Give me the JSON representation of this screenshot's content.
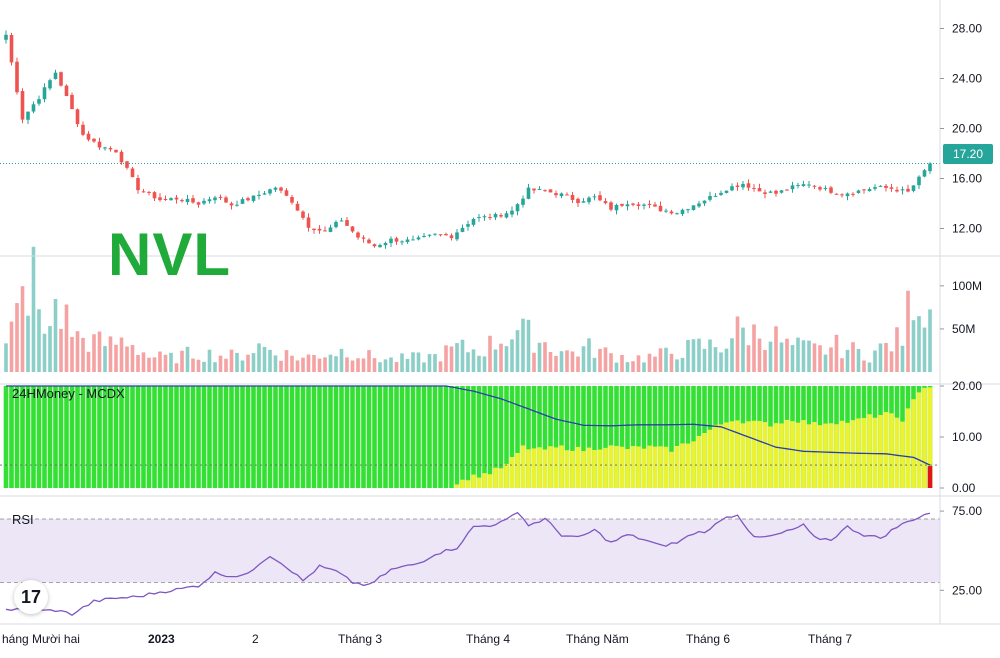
{
  "ticker": "NVL",
  "indicator_label": "24HMoney - MCDX",
  "rsi_label": "RSI",
  "logo_text": "17",
  "last_price_badge": "17.20",
  "colors": {
    "up": "#26a69a",
    "down": "#ef5350",
    "up_vol": "#8ccfc9",
    "down_vol": "#f4a3a2",
    "mcdx_green": "#33e033",
    "mcdx_yellow": "#ecf231",
    "mcdx_red": "#e01515",
    "mcdx_line": "#2b3fa8",
    "rsi_line": "#7e57c2",
    "rsi_band": "#ece6f7",
    "ticker": "#1faa3a"
  },
  "chart_data": [
    {
      "type": "candlestick",
      "name": "price",
      "y_ticks": [
        "28.00",
        "24.00",
        "20.00",
        "16.00",
        "12.00"
      ],
      "ylim": [
        9.8,
        29.8
      ],
      "last_price": 17.2,
      "anchors": [
        [
          0,
          27.5
        ],
        [
          3,
          20.8
        ],
        [
          6,
          22.5
        ],
        [
          9,
          24.5
        ],
        [
          12,
          21.5
        ],
        [
          14,
          19.5
        ],
        [
          17,
          18.6
        ],
        [
          20,
          18.2
        ],
        [
          24,
          15.2
        ],
        [
          28,
          14.3
        ],
        [
          31,
          14.4
        ],
        [
          35,
          14.0
        ],
        [
          38,
          14.6
        ],
        [
          41,
          13.9
        ],
        [
          45,
          14.5
        ],
        [
          49,
          15.3
        ],
        [
          52,
          14.2
        ],
        [
          55,
          12.2
        ],
        [
          58,
          11.7
        ],
        [
          61,
          12.7
        ],
        [
          64,
          11.3
        ],
        [
          67,
          10.6
        ],
        [
          70,
          11.1
        ],
        [
          74,
          11.0
        ],
        [
          78,
          11.5
        ],
        [
          81,
          11.4
        ],
        [
          85,
          12.8
        ],
        [
          89,
          13.0
        ],
        [
          92,
          13.4
        ],
        [
          95,
          15.1
        ],
        [
          98,
          15.0
        ],
        [
          101,
          14.7
        ],
        [
          104,
          14.2
        ],
        [
          107,
          14.5
        ],
        [
          110,
          13.6
        ],
        [
          113,
          14.1
        ],
        [
          116,
          13.9
        ],
        [
          119,
          13.5
        ],
        [
          122,
          13.3
        ],
        [
          125,
          13.9
        ],
        [
          128,
          14.5
        ],
        [
          131,
          15.2
        ],
        [
          134,
          15.6
        ],
        [
          137,
          15.0
        ],
        [
          140,
          14.8
        ],
        [
          143,
          15.3
        ],
        [
          146,
          15.6
        ],
        [
          149,
          15.1
        ],
        [
          152,
          14.8
        ],
        [
          155,
          15.0
        ],
        [
          158,
          15.3
        ],
        [
          161,
          15.2
        ],
        [
          164,
          14.9
        ],
        [
          166,
          16.0
        ],
        [
          168,
          17.2
        ]
      ]
    },
    {
      "type": "bar",
      "name": "volume",
      "y_ticks": [
        "100M",
        "50M"
      ],
      "ylim": [
        0,
        130
      ],
      "anchors": [
        [
          0,
          28
        ],
        [
          3,
          85
        ],
        [
          5,
          110
        ],
        [
          7,
          35
        ],
        [
          9,
          80
        ],
        [
          11,
          60
        ],
        [
          13,
          40
        ],
        [
          16,
          35
        ],
        [
          19,
          32
        ],
        [
          22,
          38
        ],
        [
          26,
          18
        ],
        [
          30,
          16
        ],
        [
          34,
          22
        ],
        [
          38,
          20
        ],
        [
          42,
          18
        ],
        [
          46,
          30
        ],
        [
          50,
          22
        ],
        [
          54,
          16
        ],
        [
          58,
          22
        ],
        [
          62,
          25
        ],
        [
          66,
          18
        ],
        [
          70,
          14
        ],
        [
          74,
          16
        ],
        [
          78,
          18
        ],
        [
          82,
          28
        ],
        [
          86,
          25
        ],
        [
          90,
          38
        ],
        [
          93,
          48
        ],
        [
          96,
          40
        ],
        [
          99,
          30
        ],
        [
          102,
          22
        ],
        [
          106,
          28
        ],
        [
          110,
          20
        ],
        [
          114,
          16
        ],
        [
          118,
          18
        ],
        [
          122,
          24
        ],
        [
          126,
          30
        ],
        [
          130,
          30
        ],
        [
          133,
          48
        ],
        [
          136,
          45
        ],
        [
          139,
          45
        ],
        [
          142,
          30
        ],
        [
          145,
          28
        ],
        [
          148,
          25
        ],
        [
          151,
          30
        ],
        [
          154,
          25
        ],
        [
          157,
          20
        ],
        [
          160,
          30
        ],
        [
          163,
          40
        ],
        [
          165,
          98
        ],
        [
          167,
          75
        ],
        [
          168,
          72
        ]
      ]
    },
    {
      "type": "area",
      "name": "mcdx",
      "y_ticks": [
        "20.00",
        "10.00",
        "0.00"
      ],
      "ylim": [
        0,
        20
      ],
      "banker_anchors": [
        [
          0,
          0
        ],
        [
          80,
          0
        ],
        [
          81,
          0.3
        ],
        [
          84,
          2.0
        ],
        [
          88,
          3.0
        ],
        [
          91,
          4.5
        ],
        [
          94,
          8.0
        ],
        [
          97,
          7.5
        ],
        [
          101,
          8.0
        ],
        [
          105,
          7.5
        ],
        [
          109,
          8.2
        ],
        [
          113,
          7.8
        ],
        [
          117,
          8.0
        ],
        [
          121,
          7.5
        ],
        [
          125,
          9.5
        ],
        [
          129,
          12.0
        ],
        [
          132,
          13.5
        ],
        [
          135,
          13.0
        ],
        [
          139,
          12.5
        ],
        [
          143,
          13.5
        ],
        [
          147,
          12.5
        ],
        [
          150,
          13.0
        ],
        [
          154,
          13.0
        ],
        [
          157,
          14.0
        ],
        [
          160,
          14.5
        ],
        [
          163,
          13.5
        ],
        [
          165,
          17.0
        ],
        [
          167,
          20.0
        ]
      ],
      "line_anchors": [
        [
          0,
          20
        ],
        [
          80,
          20
        ],
        [
          85,
          19
        ],
        [
          90,
          17.5
        ],
        [
          95,
          15.5
        ],
        [
          100,
          13.5
        ],
        [
          105,
          12.3
        ],
        [
          110,
          12.2
        ],
        [
          115,
          12.4
        ],
        [
          120,
          12.4
        ],
        [
          125,
          12.5
        ],
        [
          130,
          12.0
        ],
        [
          135,
          10.0
        ],
        [
          140,
          8.0
        ],
        [
          145,
          7.2
        ],
        [
          150,
          7.0
        ],
        [
          155,
          6.8
        ],
        [
          160,
          6.7
        ],
        [
          165,
          6.0
        ],
        [
          168,
          4.5
        ]
      ]
    },
    {
      "type": "line",
      "name": "rsi",
      "y_ticks": [
        "75.00",
        "25.00"
      ],
      "ylim": [
        5,
        82
      ],
      "bands": [
        30,
        70
      ],
      "anchors": [
        [
          0,
          13
        ],
        [
          6,
          12
        ],
        [
          9,
          12.5
        ],
        [
          12,
          10
        ],
        [
          16,
          18
        ],
        [
          20,
          20
        ],
        [
          24,
          21
        ],
        [
          28,
          24
        ],
        [
          32,
          26
        ],
        [
          35,
          28
        ],
        [
          38,
          36
        ],
        [
          41,
          34
        ],
        [
          44,
          35
        ],
        [
          46,
          42
        ],
        [
          48,
          47
        ],
        [
          51,
          40
        ],
        [
          54,
          31
        ],
        [
          57,
          40
        ],
        [
          60,
          37
        ],
        [
          63,
          30
        ],
        [
          66,
          28
        ],
        [
          70,
          38
        ],
        [
          75,
          42
        ],
        [
          78,
          48
        ],
        [
          82,
          52
        ],
        [
          85,
          65
        ],
        [
          88,
          66
        ],
        [
          91,
          69
        ],
        [
          93,
          75
        ],
        [
          95,
          66
        ],
        [
          98,
          70
        ],
        [
          101,
          60
        ],
        [
          104,
          58
        ],
        [
          107,
          63
        ],
        [
          110,
          55
        ],
        [
          113,
          60
        ],
        [
          116,
          57
        ],
        [
          119,
          53
        ],
        [
          122,
          55
        ],
        [
          125,
          61
        ],
        [
          128,
          63
        ],
        [
          130,
          70
        ],
        [
          133,
          73
        ],
        [
          136,
          58
        ],
        [
          139,
          59
        ],
        [
          142,
          62
        ],
        [
          145,
          66
        ],
        [
          147,
          58
        ],
        [
          150,
          57
        ],
        [
          153,
          65
        ],
        [
          156,
          60
        ],
        [
          159,
          58
        ],
        [
          162,
          65
        ],
        [
          165,
          70
        ],
        [
          168,
          74
        ]
      ]
    }
  ],
  "x_axis": [
    "háng Mười hai",
    "2023",
    "2",
    "Tháng 3",
    "Tháng 4",
    "Tháng Năm",
    "Tháng 6",
    "Tháng 7"
  ]
}
